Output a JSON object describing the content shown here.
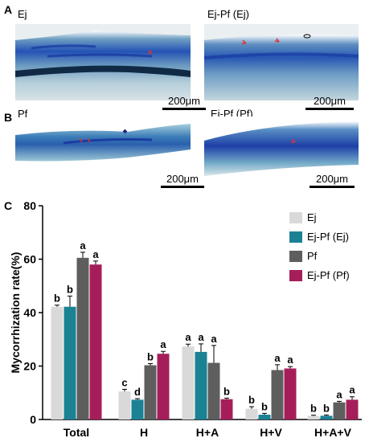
{
  "figure": {
    "panels": [
      {
        "letter": "A",
        "left_label": "Ej",
        "right_label": "Ej-Pf (Ej)",
        "scale_left": "200μm",
        "scale_right": "200μm"
      },
      {
        "letter": "B",
        "left_label": "Pf",
        "right_label": "Ej-Pf (Pf)",
        "scale_left": "200μm",
        "scale_right": "200μm"
      },
      {
        "letter": "C"
      }
    ]
  },
  "colors": {
    "Ej": "#d9d9d9",
    "Ej-Pf (Ej)": "#1b8294",
    "Pf": "#5e5e5e",
    "Ej-Pf (Pf)": "#a51e5a",
    "tissue_light": "#a9c7d6",
    "tissue_dark": "#1e46a8"
  },
  "chart_data": {
    "type": "bar",
    "categories": [
      "Total",
      "H",
      "H+A",
      "H+V",
      "H+A+V"
    ],
    "series": [
      {
        "name": "Ej",
        "values": [
          42.2,
          10.5,
          27.3,
          4.0,
          1.3
        ],
        "errors": [
          0.6,
          0.8,
          0.9,
          0.8,
          0.3
        ],
        "letters": [
          "b",
          "c",
          "a",
          "b",
          "b"
        ]
      },
      {
        "name": "Ej-Pf (Ej)",
        "values": [
          42.2,
          7.4,
          25.3,
          1.8,
          1.4
        ],
        "errors": [
          4.0,
          0.4,
          3.0,
          0.5,
          0.3
        ],
        "letters": [
          "b",
          "d",
          "a",
          "b",
          "b"
        ]
      },
      {
        "name": "Pf",
        "values": [
          60.5,
          20.3,
          21.2,
          18.5,
          6.4
        ],
        "errors": [
          2.1,
          0.6,
          6.5,
          2.0,
          0.4
        ],
        "letters": [
          "a",
          "b",
          "a",
          "a",
          "a"
        ]
      },
      {
        "name": "Ej-Pf (Pf)",
        "values": [
          58.0,
          24.6,
          7.6,
          19.1,
          7.4
        ],
        "errors": [
          1.3,
          0.9,
          0.4,
          0.7,
          1.1
        ],
        "letters": [
          "a",
          "a",
          "b",
          "a",
          "a"
        ]
      }
    ],
    "ylabel": "Mycorrhization rate(%)",
    "xlabel": "",
    "ylim": [
      0,
      80
    ],
    "yticks": [
      0,
      20,
      40,
      60,
      80
    ],
    "legend": "top-right",
    "grid": false
  }
}
